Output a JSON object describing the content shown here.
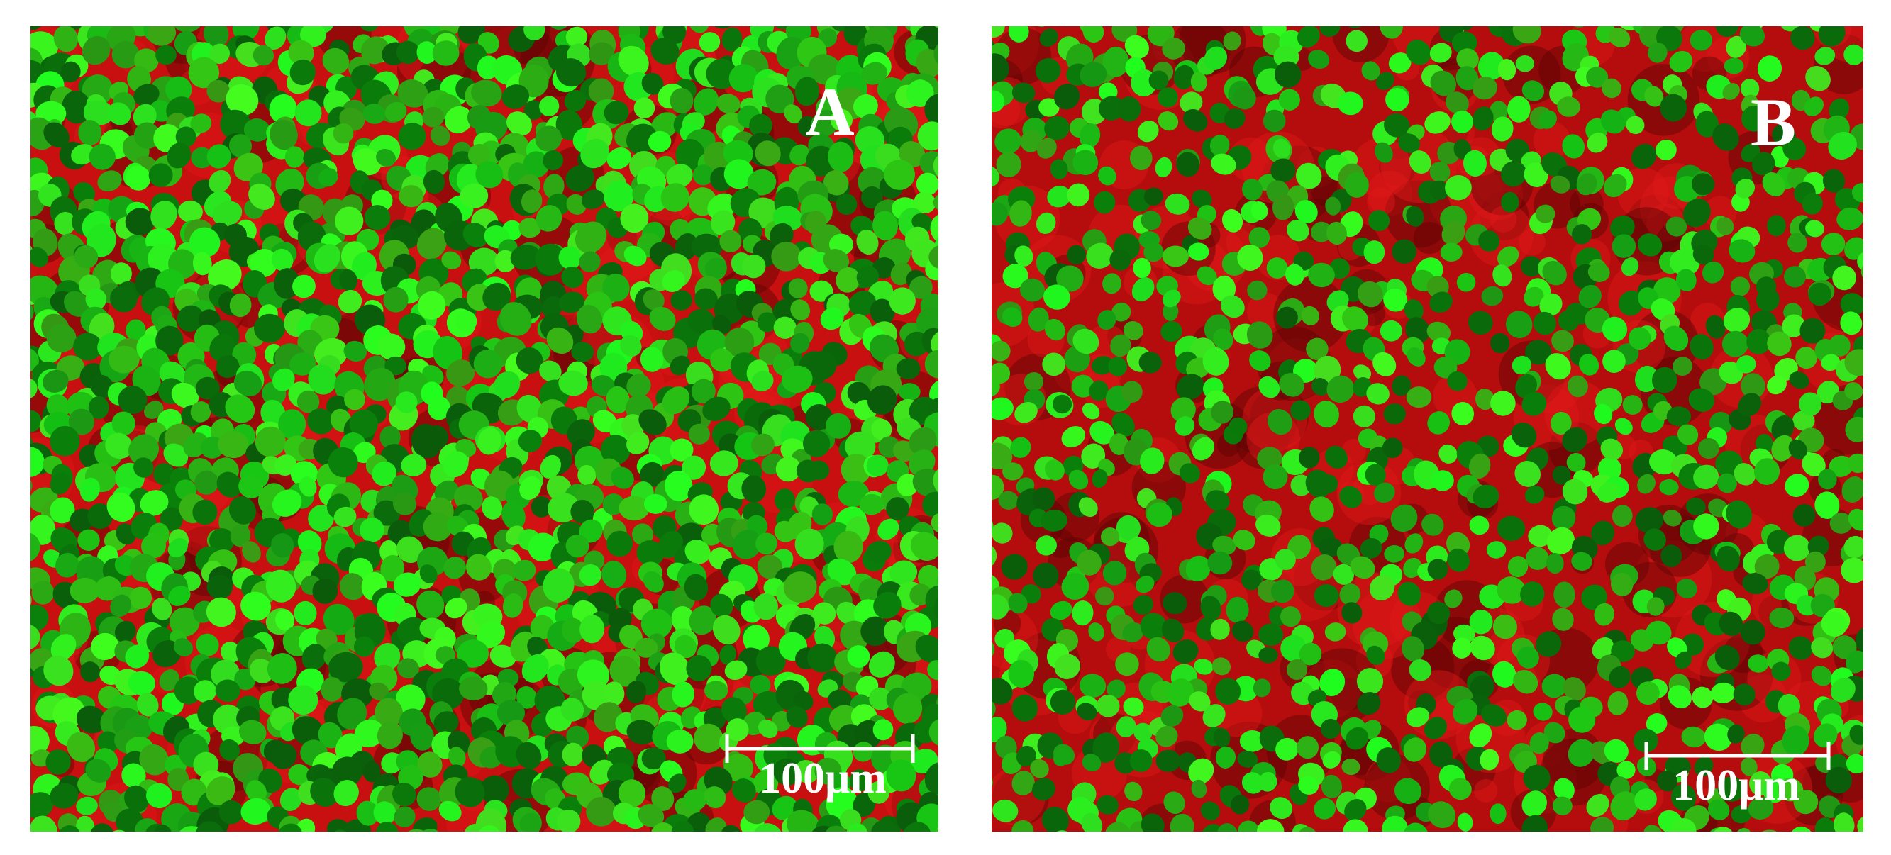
{
  "panels": [
    {
      "label": "A",
      "scale_bar": "100μm"
    },
    {
      "label": "B",
      "scale_bar": "100μm"
    }
  ]
}
